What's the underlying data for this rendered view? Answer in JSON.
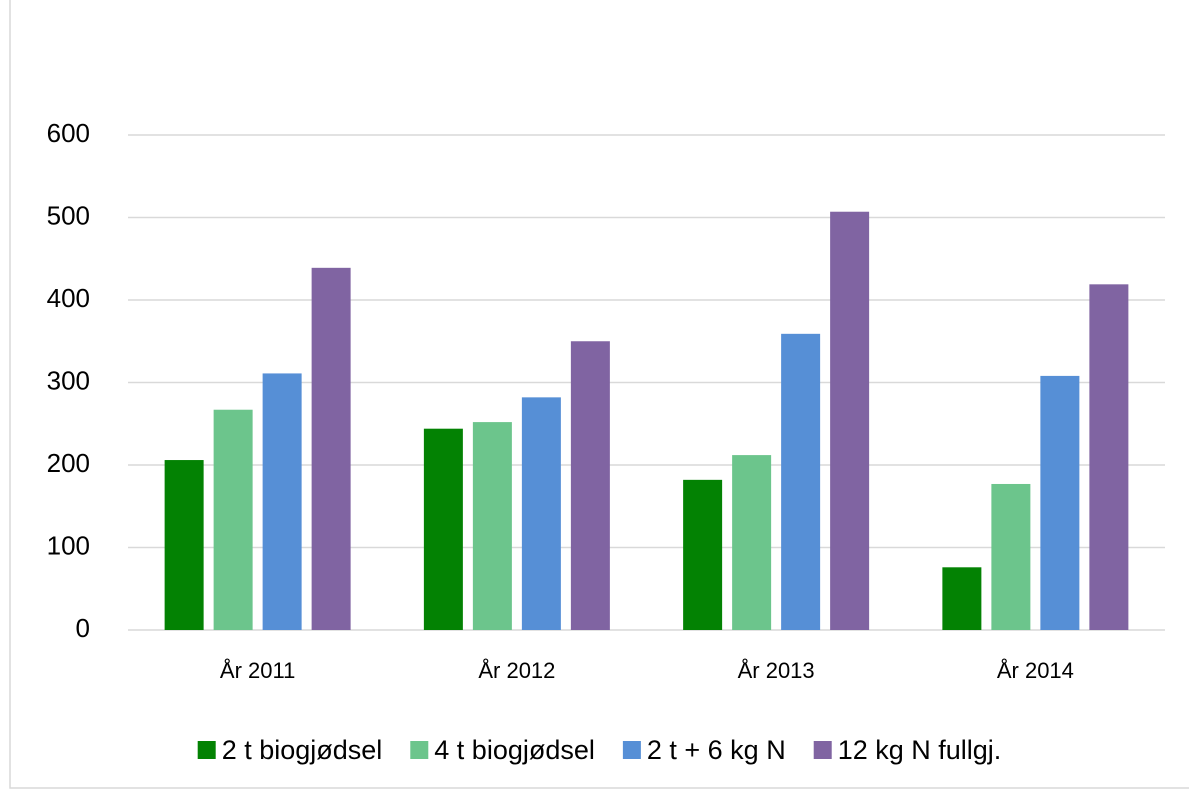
{
  "chart_data": {
    "type": "bar",
    "categories": [
      "År 2011",
      "År 2012",
      "År 2013",
      "År 2014"
    ],
    "series": [
      {
        "name": "2 t biogjødsel",
        "color": "#038203",
        "values": [
          206,
          244,
          182,
          76
        ]
      },
      {
        "name": "4 t biogjødsel",
        "color": "#6cc58c",
        "values": [
          267,
          252,
          212,
          177
        ]
      },
      {
        "name": "2 t + 6 kg N",
        "color": "#568fd6",
        "values": [
          311,
          282,
          359,
          308
        ]
      },
      {
        "name": "12 kg N fullgj.",
        "color": "#8064a2",
        "values": [
          439,
          350,
          507,
          419
        ]
      }
    ],
    "ylim": [
      0,
      600
    ],
    "yticks": [
      0,
      100,
      200,
      300,
      400,
      500,
      600
    ],
    "grid": true,
    "legend": "bottom"
  }
}
